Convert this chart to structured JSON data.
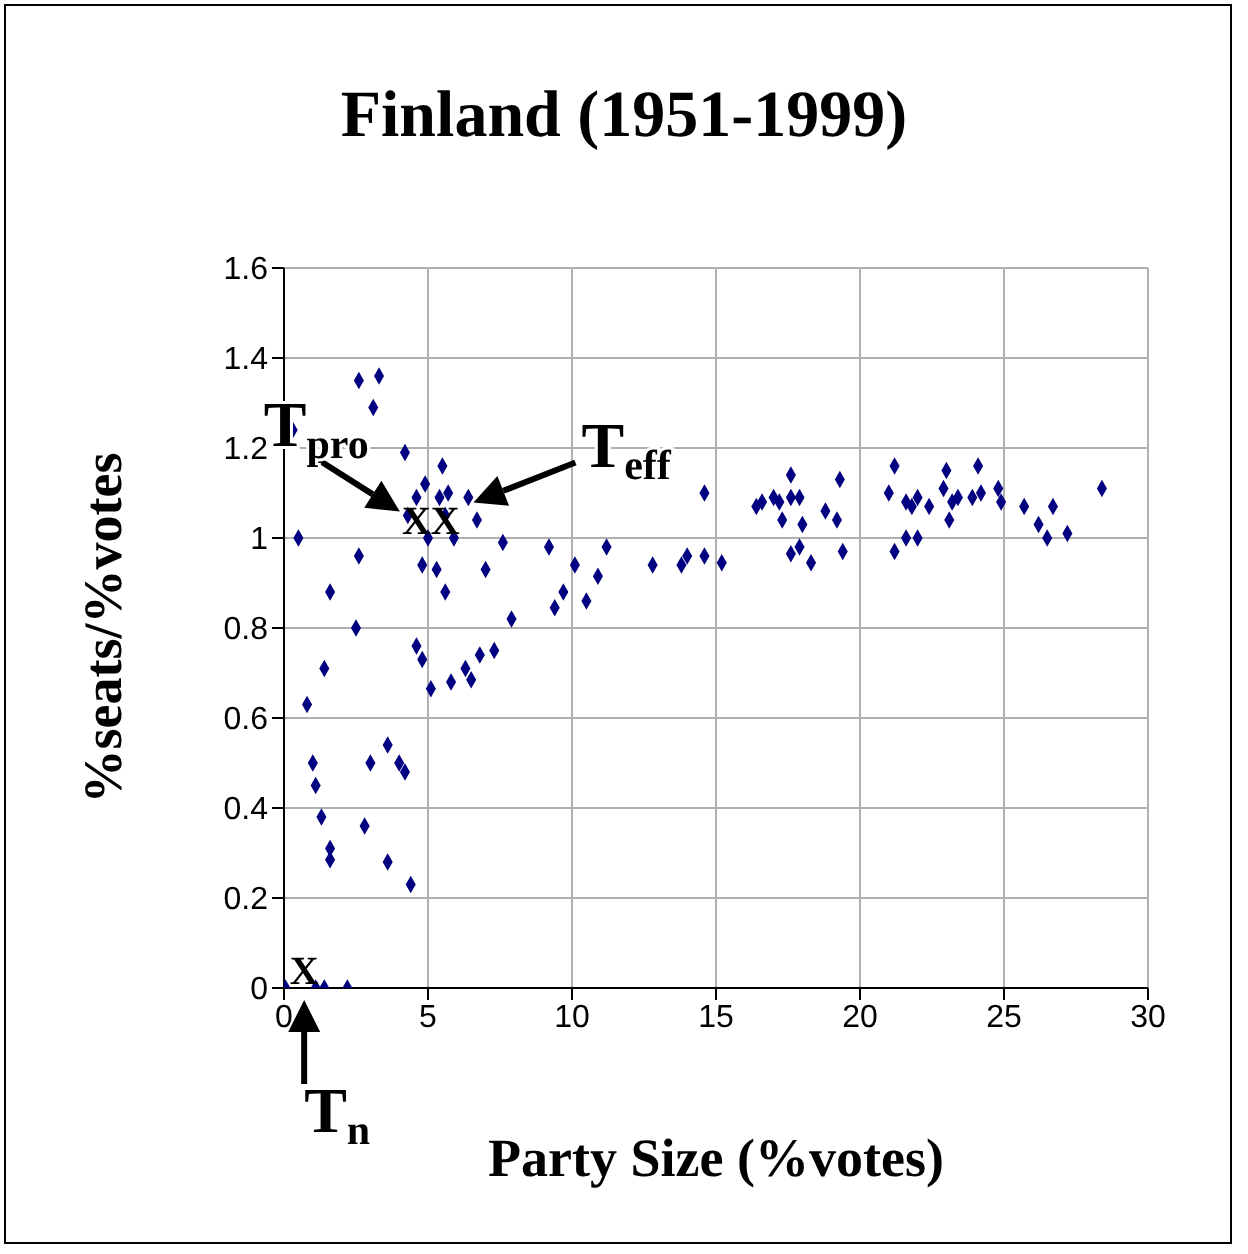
{
  "chart_data": {
    "type": "scatter",
    "title": "Finland (1951-1999)",
    "xlabel": "Party Size (%votes)",
    "ylabel": "%seats/%votes",
    "xlim": [
      0,
      30
    ],
    "xticks": [
      0,
      5,
      10,
      15,
      20,
      25,
      30
    ],
    "ylim": [
      0,
      1.6
    ],
    "yticks": [
      0,
      0.2,
      0.4,
      0.6,
      0.8,
      1,
      1.2,
      1.4,
      1.6
    ],
    "grid": true,
    "marker": "diamond",
    "legend": false,
    "series": [
      {
        "color": "#000080",
        "x": [
          0.05,
          1.1,
          1.4,
          2.2,
          0.3,
          0.5,
          0.8,
          1.0,
          1.1,
          1.3,
          1.4,
          1.6,
          1.6,
          1.6,
          2.5,
          2.6,
          2.6,
          2.8,
          3.0,
          3.1,
          3.3,
          3.6,
          3.6,
          4.0,
          4.2,
          4.2,
          4.3,
          4.4,
          4.6,
          4.8,
          4.6,
          4.8,
          4.9,
          5.0,
          5.1,
          5.3,
          5.4,
          5.5,
          5.6,
          5.6,
          5.7,
          5.8,
          5.9,
          6.3,
          6.5,
          6.4,
          6.7,
          6.8,
          7.0,
          7.3,
          7.6,
          7.9,
          9.2,
          9.4,
          9.7,
          10.1,
          10.5,
          10.9,
          11.2,
          12.8,
          13.8,
          14.0,
          14.6,
          14.6,
          15.2,
          16.4,
          16.6,
          17.0,
          17.2,
          17.3,
          17.6,
          17.6,
          17.6,
          17.9,
          17.9,
          18.0,
          18.3,
          18.8,
          19.2,
          19.3,
          19.4,
          21.0,
          21.2,
          21.2,
          21.6,
          21.6,
          21.8,
          22.0,
          22.0,
          22.4,
          22.9,
          23.0,
          23.1,
          23.2,
          23.4,
          23.9,
          24.1,
          24.2,
          24.8,
          24.9,
          25.7,
          26.2,
          26.5,
          26.7,
          27.2,
          28.4
        ],
        "values": [
          0,
          0,
          0,
          0,
          1.24,
          1.0,
          0.63,
          0.5,
          0.45,
          0.38,
          0.71,
          0.88,
          0.31,
          0.285,
          0.8,
          0.96,
          1.35,
          0.36,
          0.5,
          1.29,
          1.36,
          0.54,
          0.28,
          0.5,
          0.48,
          1.19,
          1.05,
          0.23,
          0.76,
          0.73,
          1.09,
          0.94,
          1.12,
          1.0,
          0.665,
          0.93,
          1.09,
          1.16,
          1.05,
          0.88,
          1.1,
          0.68,
          1.0,
          0.71,
          0.685,
          1.09,
          1.04,
          0.74,
          0.93,
          0.75,
          0.99,
          0.82,
          0.98,
          0.845,
          0.88,
          0.94,
          0.86,
          0.915,
          0.98,
          0.94,
          0.94,
          0.96,
          0.96,
          1.1,
          0.945,
          1.07,
          1.08,
          1.09,
          1.08,
          1.04,
          1.14,
          1.09,
          0.965,
          0.98,
          1.09,
          1.03,
          0.945,
          1.06,
          1.04,
          1.13,
          0.97,
          1.1,
          1.16,
          0.97,
          1.08,
          1.0,
          1.07,
          1.09,
          1.0,
          1.07,
          1.11,
          1.15,
          1.04,
          1.08,
          1.09,
          1.09,
          1.16,
          1.1,
          1.11,
          1.08,
          1.07,
          1.03,
          1.0,
          1.07,
          1.01,
          1.11
        ]
      }
    ],
    "annotations": [
      {
        "text": "X",
        "x": 4.6,
        "y": 1.0
      },
      {
        "text": "X",
        "x": 5.6,
        "y": 1.0
      },
      {
        "text": "X",
        "x": 0.7,
        "y": 0
      },
      {
        "text": "T$_{pro}$",
        "x": 4.3,
        "y": 1.05
      },
      {
        "text": "T$_{eff}$",
        "x": 6.3,
        "y": 1.07
      },
      {
        "text": "T$_{n}$",
        "x": 0.7,
        "y": 0
      }
    ]
  }
}
